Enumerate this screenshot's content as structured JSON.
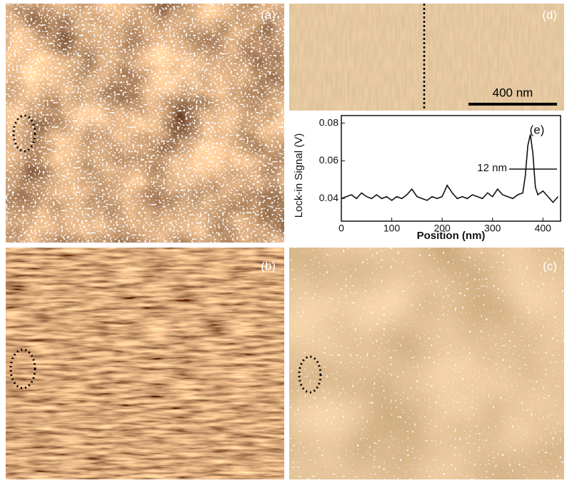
{
  "panels": {
    "a": "(a)",
    "b": "(b)",
    "c": "(c)",
    "d": "(d)",
    "e": "(e)"
  },
  "scale_bar": "400 nm",
  "chart_data": {
    "type": "line",
    "xlabel": "Position (nm)",
    "ylabel": "Lock-in Signal (V)",
    "annotation": "12 nm",
    "color": "#111111",
    "x": [
      0,
      10,
      20,
      30,
      40,
      50,
      60,
      70,
      80,
      90,
      100,
      110,
      120,
      130,
      140,
      150,
      160,
      170,
      180,
      190,
      200,
      210,
      220,
      230,
      240,
      250,
      260,
      270,
      280,
      290,
      300,
      310,
      320,
      330,
      340,
      350,
      360,
      365,
      370,
      375,
      380,
      385,
      390,
      400,
      410,
      420,
      430
    ],
    "values": [
      0.04,
      0.041,
      0.042,
      0.04,
      0.043,
      0.041,
      0.04,
      0.042,
      0.04,
      0.041,
      0.039,
      0.041,
      0.04,
      0.042,
      0.045,
      0.041,
      0.04,
      0.039,
      0.041,
      0.04,
      0.041,
      0.047,
      0.043,
      0.04,
      0.041,
      0.04,
      0.042,
      0.041,
      0.04,
      0.043,
      0.041,
      0.045,
      0.042,
      0.041,
      0.04,
      0.042,
      0.043,
      0.052,
      0.068,
      0.074,
      0.064,
      0.046,
      0.042,
      0.044,
      0.041,
      0.038,
      0.041
    ],
    "xlim": [
      0,
      435
    ],
    "xticks": [
      0,
      100,
      200,
      300,
      400
    ],
    "ylim": [
      0.028,
      0.084
    ],
    "yticks": [
      0.04,
      0.06,
      0.08
    ]
  }
}
